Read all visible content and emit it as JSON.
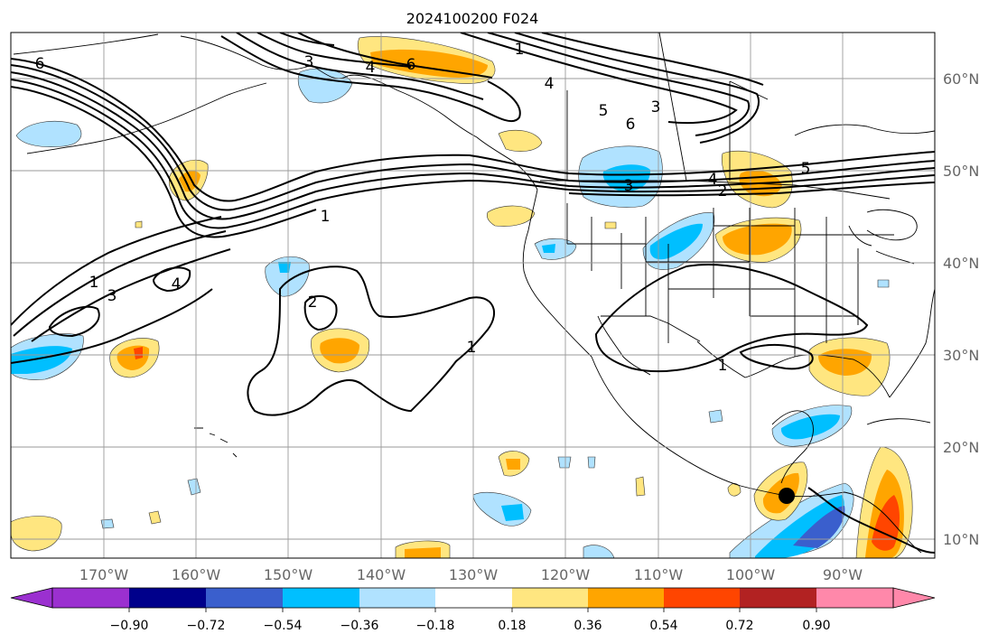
{
  "title": "2024100200 F024",
  "lat_labels": [
    "60°N",
    "50°N",
    "40°N",
    "30°N",
    "20°N",
    "10°N"
  ],
  "lon_labels": [
    "170°W",
    "160°W",
    "150°W",
    "140°W",
    "130°W",
    "120°W",
    "110°W",
    "100°W",
    "90°W"
  ],
  "colorbar": {
    "tick_labels": [
      "−0.90",
      "−0.72",
      "−0.54",
      "−0.36",
      "−0.18",
      "0.18",
      "0.36",
      "0.54",
      "0.72",
      "0.90"
    ],
    "colors": [
      "#9b30d0",
      "#00008b",
      "#3a5fcd",
      "#00bfff",
      "#b0e2ff",
      "#ffffff",
      "#ffe680",
      "#ffa500",
      "#ff4500",
      "#b22222",
      "#ff88aa"
    ]
  },
  "contour_labels": [
    "6",
    "3",
    "4",
    "6",
    "1",
    "4",
    "5",
    "3",
    "6",
    "3",
    "4",
    "5",
    "2",
    "1",
    "1",
    "3",
    "4",
    "2",
    "1",
    "1"
  ],
  "marker": "storm-center"
}
